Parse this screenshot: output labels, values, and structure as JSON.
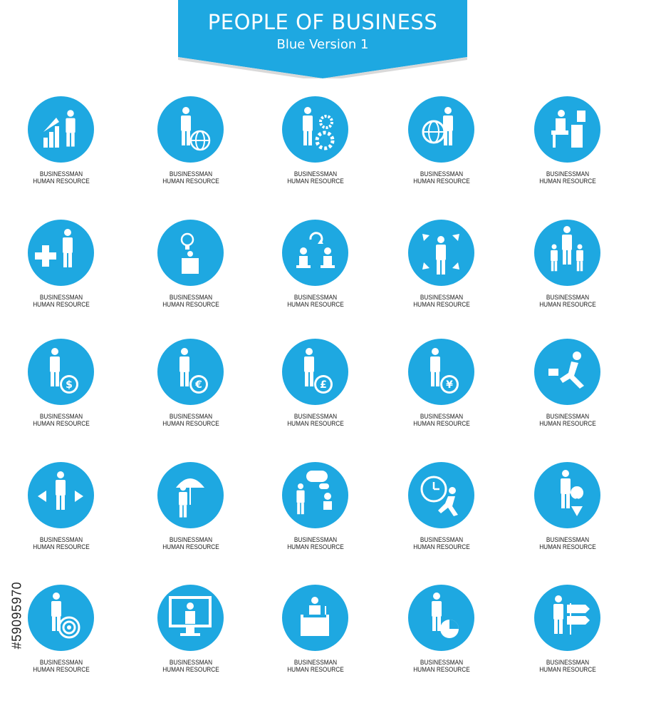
{
  "header": {
    "title": "PEOPLE OF BUSINESS",
    "subtitle": "Blue Version 1",
    "color": "#1ea8e1"
  },
  "stock_id": "#59095970",
  "icons": [
    {
      "icon": "growth-chart-businessman-icon",
      "line1": "BUSINESSMAN",
      "line2": "HUMAN RESOURCE"
    },
    {
      "icon": "businessman-globe-icon",
      "line1": "BUSINESSMAN",
      "line2": "HUMAN RESOURCE"
    },
    {
      "icon": "businessman-gears-icon",
      "line1": "BUSINESSMAN",
      "line2": "HUMAN RESOURCE"
    },
    {
      "icon": "globe-businessman-icon",
      "line1": "BUSINESSMAN",
      "line2": "HUMAN RESOURCE"
    },
    {
      "icon": "businessman-desk-computer-icon",
      "line1": "BUSINESSMAN",
      "line2": "HUMAN RESOURCE"
    },
    {
      "icon": "businessman-pushing-plus-icon",
      "line1": "BUSINESSMAN",
      "line2": "HUMAN RESOURCE"
    },
    {
      "icon": "businessman-idea-bulb-icon",
      "line1": "BUSINESSMAN",
      "line2": "HUMAN RESOURCE"
    },
    {
      "icon": "meeting-recycle-icon",
      "line1": "BUSINESSMAN",
      "line2": "HUMAN RESOURCE"
    },
    {
      "icon": "businessman-arrows-out-icon",
      "line1": "BUSINESSMAN",
      "line2": "HUMAN RESOURCE"
    },
    {
      "icon": "team-celebration-icon",
      "line1": "BUSINESSMAN",
      "line2": "HUMAN RESOURCE"
    },
    {
      "icon": "businessman-dollar-coin-icon",
      "line1": "BUSINESSMAN",
      "line2": "HUMAN RESOURCE"
    },
    {
      "icon": "businessman-euro-coin-icon",
      "line1": "BUSINESSMAN",
      "line2": "HUMAN RESOURCE"
    },
    {
      "icon": "businessman-pound-coin-icon",
      "line1": "BUSINESSMAN",
      "line2": "HUMAN RESOURCE"
    },
    {
      "icon": "businessman-yen-coin-icon",
      "line1": "BUSINESSMAN",
      "line2": "HUMAN RESOURCE"
    },
    {
      "icon": "running-businessman-icon",
      "line1": "BUSINESSMAN",
      "line2": "HUMAN RESOURCE"
    },
    {
      "icon": "businessman-direction-arrows-icon",
      "line1": "BUSINESSMAN",
      "line2": "HUMAN RESOURCE"
    },
    {
      "icon": "businessman-umbrella-icon",
      "line1": "BUSINESSMAN",
      "line2": "HUMAN RESOURCE"
    },
    {
      "icon": "conversation-speech-bubble-icon",
      "line1": "BUSINESSMAN",
      "line2": "HUMAN RESOURCE"
    },
    {
      "icon": "businessman-clock-running-icon",
      "line1": "BUSINESSMAN",
      "line2": "HUMAN RESOURCE"
    },
    {
      "icon": "businessman-location-pin-icon",
      "line1": "BUSINESSMAN",
      "line2": "HUMAN RESOURCE"
    },
    {
      "icon": "businessman-target-icon",
      "line1": "BUSINESSMAN",
      "line2": "HUMAN RESOURCE"
    },
    {
      "icon": "businessman-monitor-icon",
      "line1": "BUSINESSMAN",
      "line2": "HUMAN RESOURCE"
    },
    {
      "icon": "businessman-podium-icon",
      "line1": "BUSINESSMAN",
      "line2": "HUMAN RESOURCE"
    },
    {
      "icon": "businessman-pie-chart-icon",
      "line1": "BUSINESSMAN",
      "line2": "HUMAN RESOURCE"
    },
    {
      "icon": "businessman-signpost-icon",
      "line1": "BUSINESSMAN",
      "line2": "HUMAN RESOURCE"
    }
  ]
}
